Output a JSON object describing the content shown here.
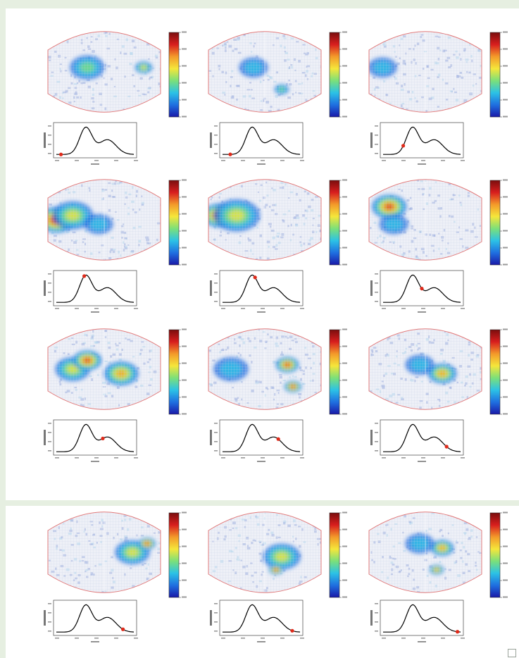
{
  "figure": {
    "grid_rows": 4,
    "grid_cols": 3,
    "colormap": [
      "#1a1aa8",
      "#1f6fe0",
      "#2cc2e6",
      "#7be07a",
      "#f5e63b",
      "#f39a2a",
      "#d81e1e",
      "#7a0d0d"
    ],
    "outline_color": "#e27b7b",
    "curve_color": "#000000",
    "marker_color": "#e02a1a",
    "frames": [
      {
        "row": 0,
        "col": 0,
        "marker_t": 0.06
      },
      {
        "row": 0,
        "col": 1,
        "marker_t": 0.1
      },
      {
        "row": 0,
        "col": 2,
        "marker_t": 0.26
      },
      {
        "row": 1,
        "col": 0,
        "marker_t": 0.36
      },
      {
        "row": 1,
        "col": 1,
        "marker_t": 0.42
      },
      {
        "row": 1,
        "col": 2,
        "marker_t": 0.5
      },
      {
        "row": 2,
        "col": 0,
        "marker_t": 0.6
      },
      {
        "row": 2,
        "col": 1,
        "marker_t": 0.72
      },
      {
        "row": 2,
        "col": 2,
        "marker_t": 0.82
      },
      {
        "row": 3,
        "col": 0,
        "marker_t": 0.86
      },
      {
        "row": 3,
        "col": 1,
        "marker_t": 0.9
      },
      {
        "row": 3,
        "col": 2,
        "marker_t": 0.96
      }
    ]
  }
}
